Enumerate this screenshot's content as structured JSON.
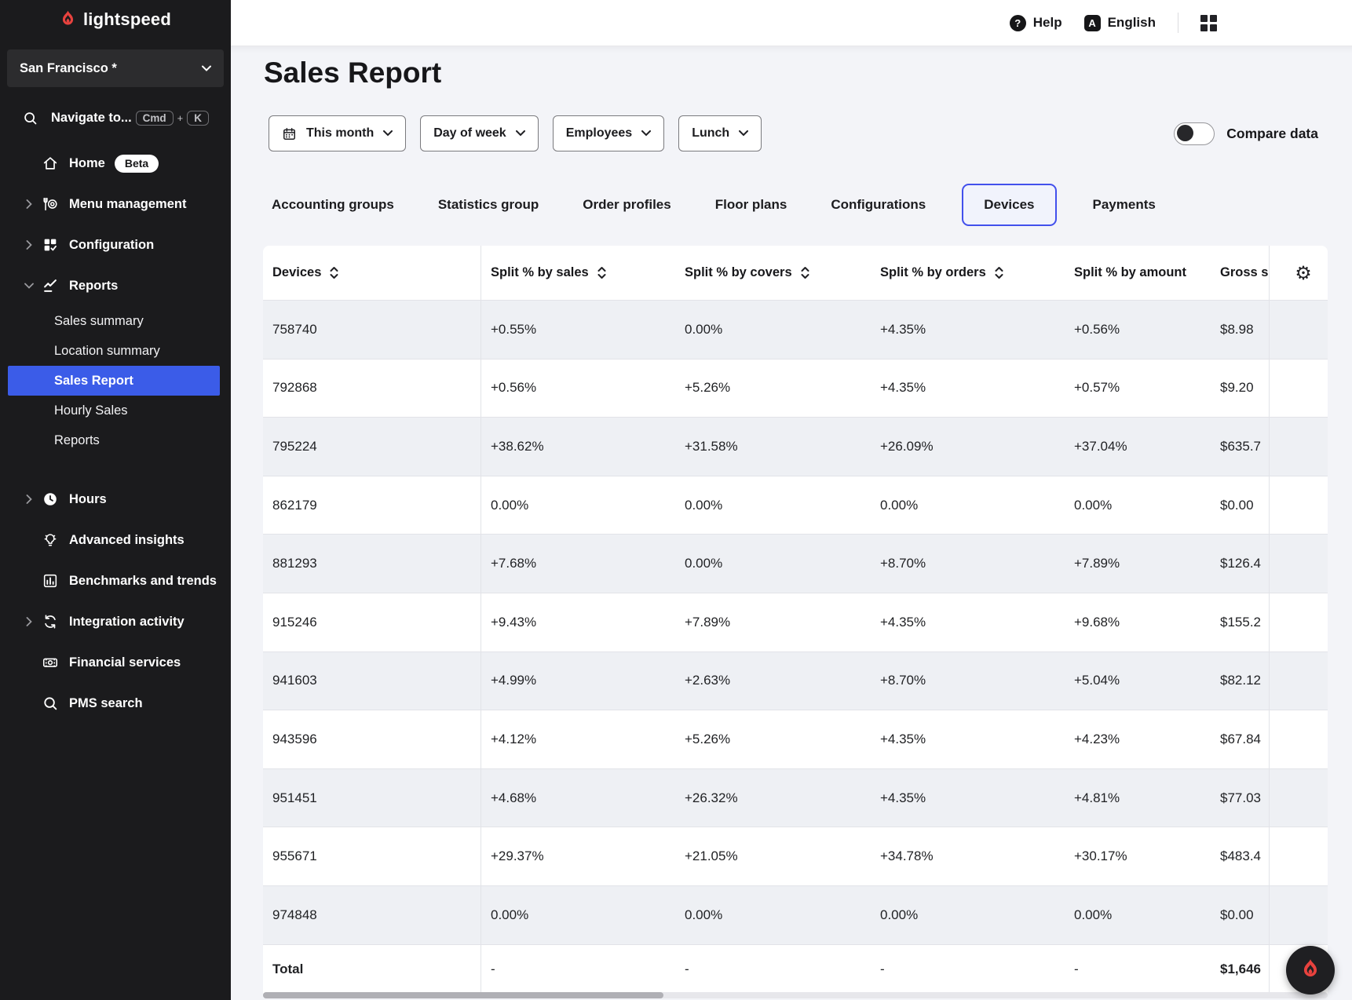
{
  "brand": {
    "logo_text": "lightspeed",
    "flame_color": "#e8423e"
  },
  "sidebar": {
    "location": {
      "label": "San Francisco *"
    },
    "search": {
      "label": "Navigate to...",
      "keys": [
        "Cmd",
        "+",
        "K"
      ]
    },
    "items": [
      {
        "label": "Home",
        "badge": "Beta"
      },
      {
        "label": "Menu management"
      },
      {
        "label": "Configuration"
      },
      {
        "label": "Reports"
      },
      {
        "label": "Sales summary"
      },
      {
        "label": "Location summary"
      },
      {
        "label": "Sales Report"
      },
      {
        "label": "Hourly Sales"
      },
      {
        "label": "Reports"
      },
      {
        "label": "Hours"
      },
      {
        "label": "Advanced insights"
      },
      {
        "label": "Benchmarks and trends"
      },
      {
        "label": "Integration activity"
      },
      {
        "label": "Financial services"
      },
      {
        "label": "PMS search"
      }
    ],
    "selected_item": "Sales Report"
  },
  "topbar": {
    "help_label": "Help",
    "language_label": "English"
  },
  "page": {
    "title": "Sales Report"
  },
  "filters": [
    {
      "label": "This month"
    },
    {
      "label": "Day of week"
    },
    {
      "label": "Employees"
    },
    {
      "label": "Lunch"
    }
  ],
  "compare": {
    "label": "Compare data",
    "enabled": false
  },
  "tabs": [
    {
      "label": "Accounting groups"
    },
    {
      "label": "Statistics group"
    },
    {
      "label": "Order profiles"
    },
    {
      "label": "Floor plans"
    },
    {
      "label": "Configurations"
    },
    {
      "label": "Devices",
      "active": true
    },
    {
      "label": "Payments"
    }
  ],
  "table": {
    "columns": [
      {
        "label": "Devices",
        "sortable": true
      },
      {
        "label": "Split % by sales",
        "sortable": true
      },
      {
        "label": "Split % by covers",
        "sortable": true
      },
      {
        "label": "Split % by orders",
        "sortable": true
      },
      {
        "label": "Split % by amount",
        "sortable": false
      },
      {
        "label": "Gross s",
        "sortable": false
      }
    ],
    "rows": [
      {
        "device": "758740",
        "splits": [
          "+0.55%",
          "0.00%",
          "+4.35%",
          "+0.56%"
        ],
        "gross": "$8.98"
      },
      {
        "device": "792868",
        "splits": [
          "+0.56%",
          "+5.26%",
          "+4.35%",
          "+0.57%"
        ],
        "gross": "$9.20"
      },
      {
        "device": "795224",
        "splits": [
          "+38.62%",
          "+31.58%",
          "+26.09%",
          "+37.04%"
        ],
        "gross": "$635.7"
      },
      {
        "device": "862179",
        "splits": [
          "0.00%",
          "0.00%",
          "0.00%",
          "0.00%"
        ],
        "gross": "$0.00"
      },
      {
        "device": "881293",
        "splits": [
          "+7.68%",
          "0.00%",
          "+8.70%",
          "+7.89%"
        ],
        "gross": "$126.4"
      },
      {
        "device": "915246",
        "splits": [
          "+9.43%",
          "+7.89%",
          "+4.35%",
          "+9.68%"
        ],
        "gross": "$155.2"
      },
      {
        "device": "941603",
        "splits": [
          "+4.99%",
          "+2.63%",
          "+8.70%",
          "+5.04%"
        ],
        "gross": "$82.12"
      },
      {
        "device": "943596",
        "splits": [
          "+4.12%",
          "+5.26%",
          "+4.35%",
          "+4.23%"
        ],
        "gross": "$67.84"
      },
      {
        "device": "951451",
        "splits": [
          "+4.68%",
          "+26.32%",
          "+4.35%",
          "+4.81%"
        ],
        "gross": "$77.03"
      },
      {
        "device": "955671",
        "splits": [
          "+29.37%",
          "+21.05%",
          "+34.78%",
          "+30.17%"
        ],
        "gross": "$483.4"
      },
      {
        "device": "974848",
        "splits": [
          "0.00%",
          "0.00%",
          "0.00%",
          "0.00%"
        ],
        "gross": "$0.00"
      }
    ],
    "total": {
      "device": "Total",
      "splits": [
        "-",
        "-",
        "-",
        "-"
      ],
      "gross": "$1,646"
    }
  },
  "colors": {
    "sidebar_bg": "#1b1b1d",
    "selected_blue": "#3b5ce8",
    "tab_active_border": "#4250ec",
    "brand_red": "#e8423e",
    "stripe": "#eef0f4",
    "page_bg": "#f3f4f8"
  }
}
